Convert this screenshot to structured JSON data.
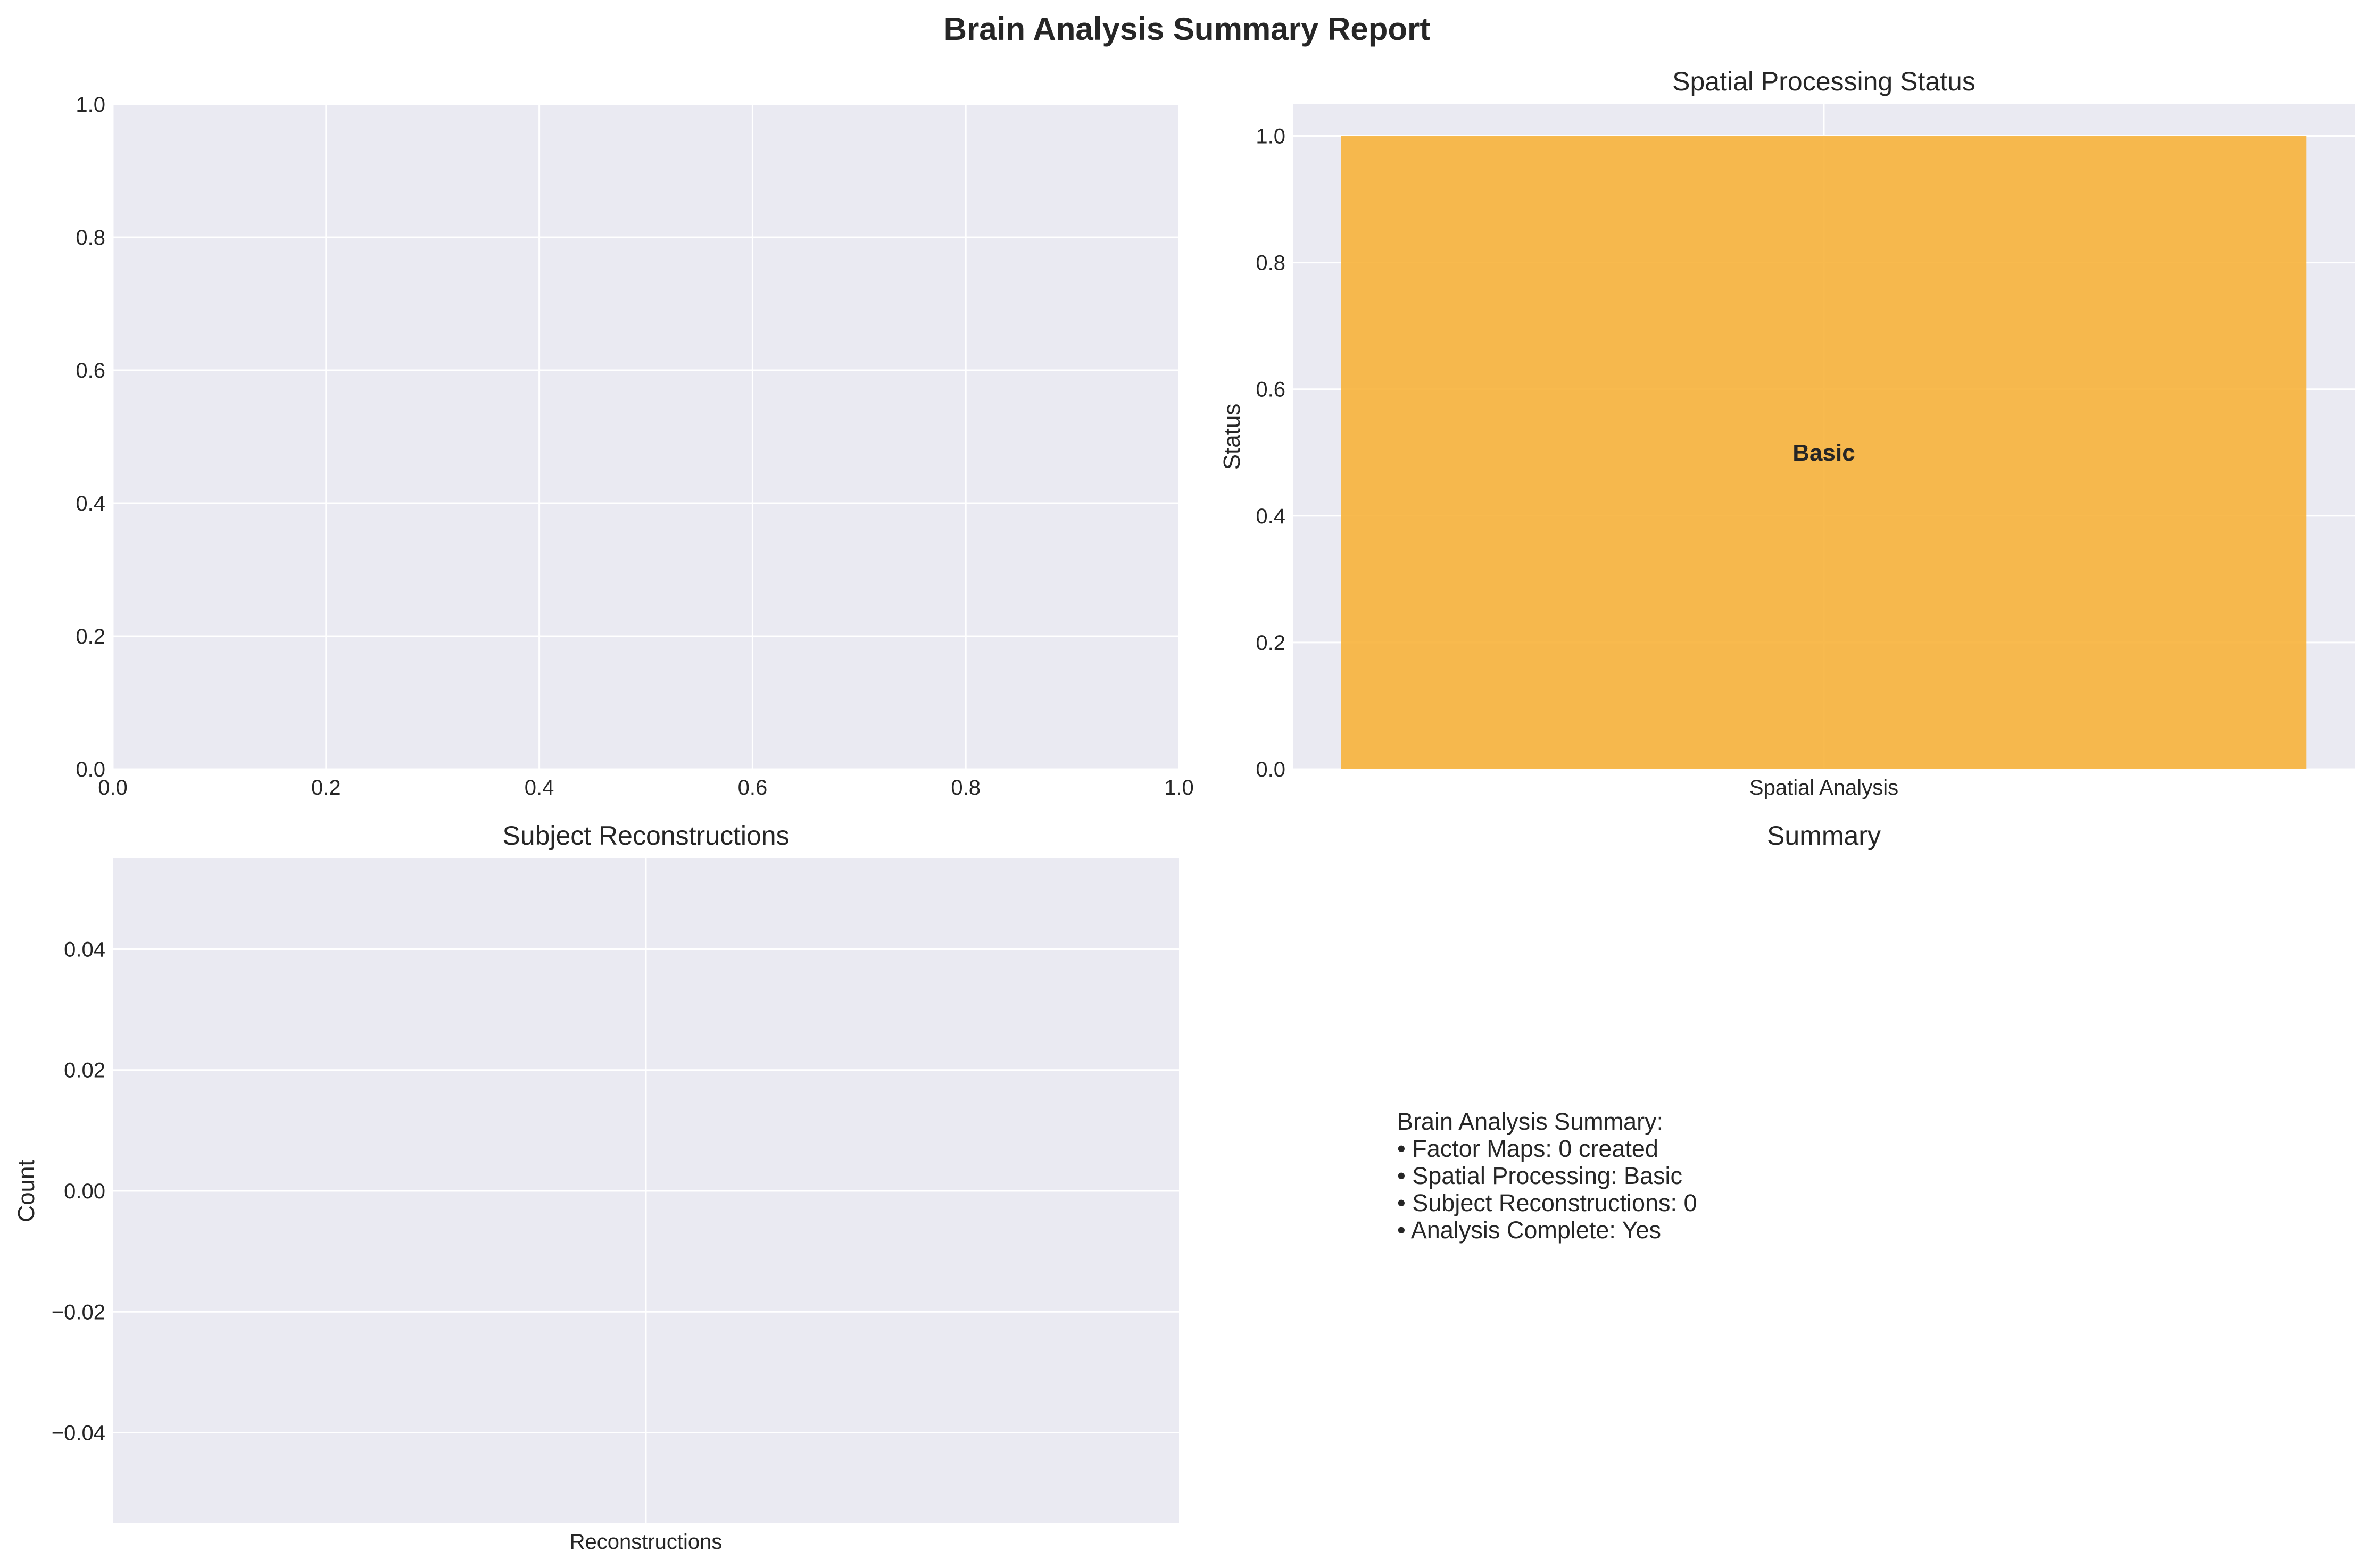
{
  "page_title": "Brain Analysis Summary Report",
  "colors": {
    "panel_bg": "#EAEAF2",
    "grid": "#FFFFFF",
    "bar": "#F7B23B",
    "text": "#262626"
  },
  "chart_data": [
    {
      "type": "line",
      "title": "",
      "xlabel": "",
      "ylabel": "",
      "xlim": [
        0,
        1
      ],
      "ylim": [
        0,
        1
      ],
      "x_ticks": [
        "0.0",
        "0.2",
        "0.4",
        "0.6",
        "0.8",
        "1.0"
      ],
      "y_ticks": [
        "0.0",
        "0.2",
        "0.4",
        "0.6",
        "0.8",
        "1.0"
      ],
      "series": [],
      "grid": true
    },
    {
      "type": "bar",
      "title": "Spatial Processing Status",
      "xlabel": "",
      "ylabel": "Status",
      "categories": [
        "Spatial Analysis"
      ],
      "values": [
        1.0
      ],
      "bar_labels": [
        "Basic"
      ],
      "ylim": [
        0,
        1.05
      ],
      "y_ticks": [
        "0.0",
        "0.2",
        "0.4",
        "0.6",
        "0.8",
        "1.0"
      ],
      "grid": true
    },
    {
      "type": "bar",
      "title": "Subject Reconstructions",
      "xlabel": "",
      "ylabel": "Count",
      "categories": [
        "Reconstructions"
      ],
      "values": [
        0
      ],
      "ylim": [
        -0.055,
        0.055
      ],
      "y_ticks": [
        "−0.04",
        "−0.02",
        "0.00",
        "0.02",
        "0.04"
      ],
      "grid": true
    }
  ],
  "summary_panel": {
    "title": "Summary",
    "lines": [
      "Brain Analysis Summary:",
      "• Factor Maps: 0 created",
      "• Spatial Processing: Basic",
      "• Subject Reconstructions: 0",
      "• Analysis Complete: Yes"
    ]
  }
}
